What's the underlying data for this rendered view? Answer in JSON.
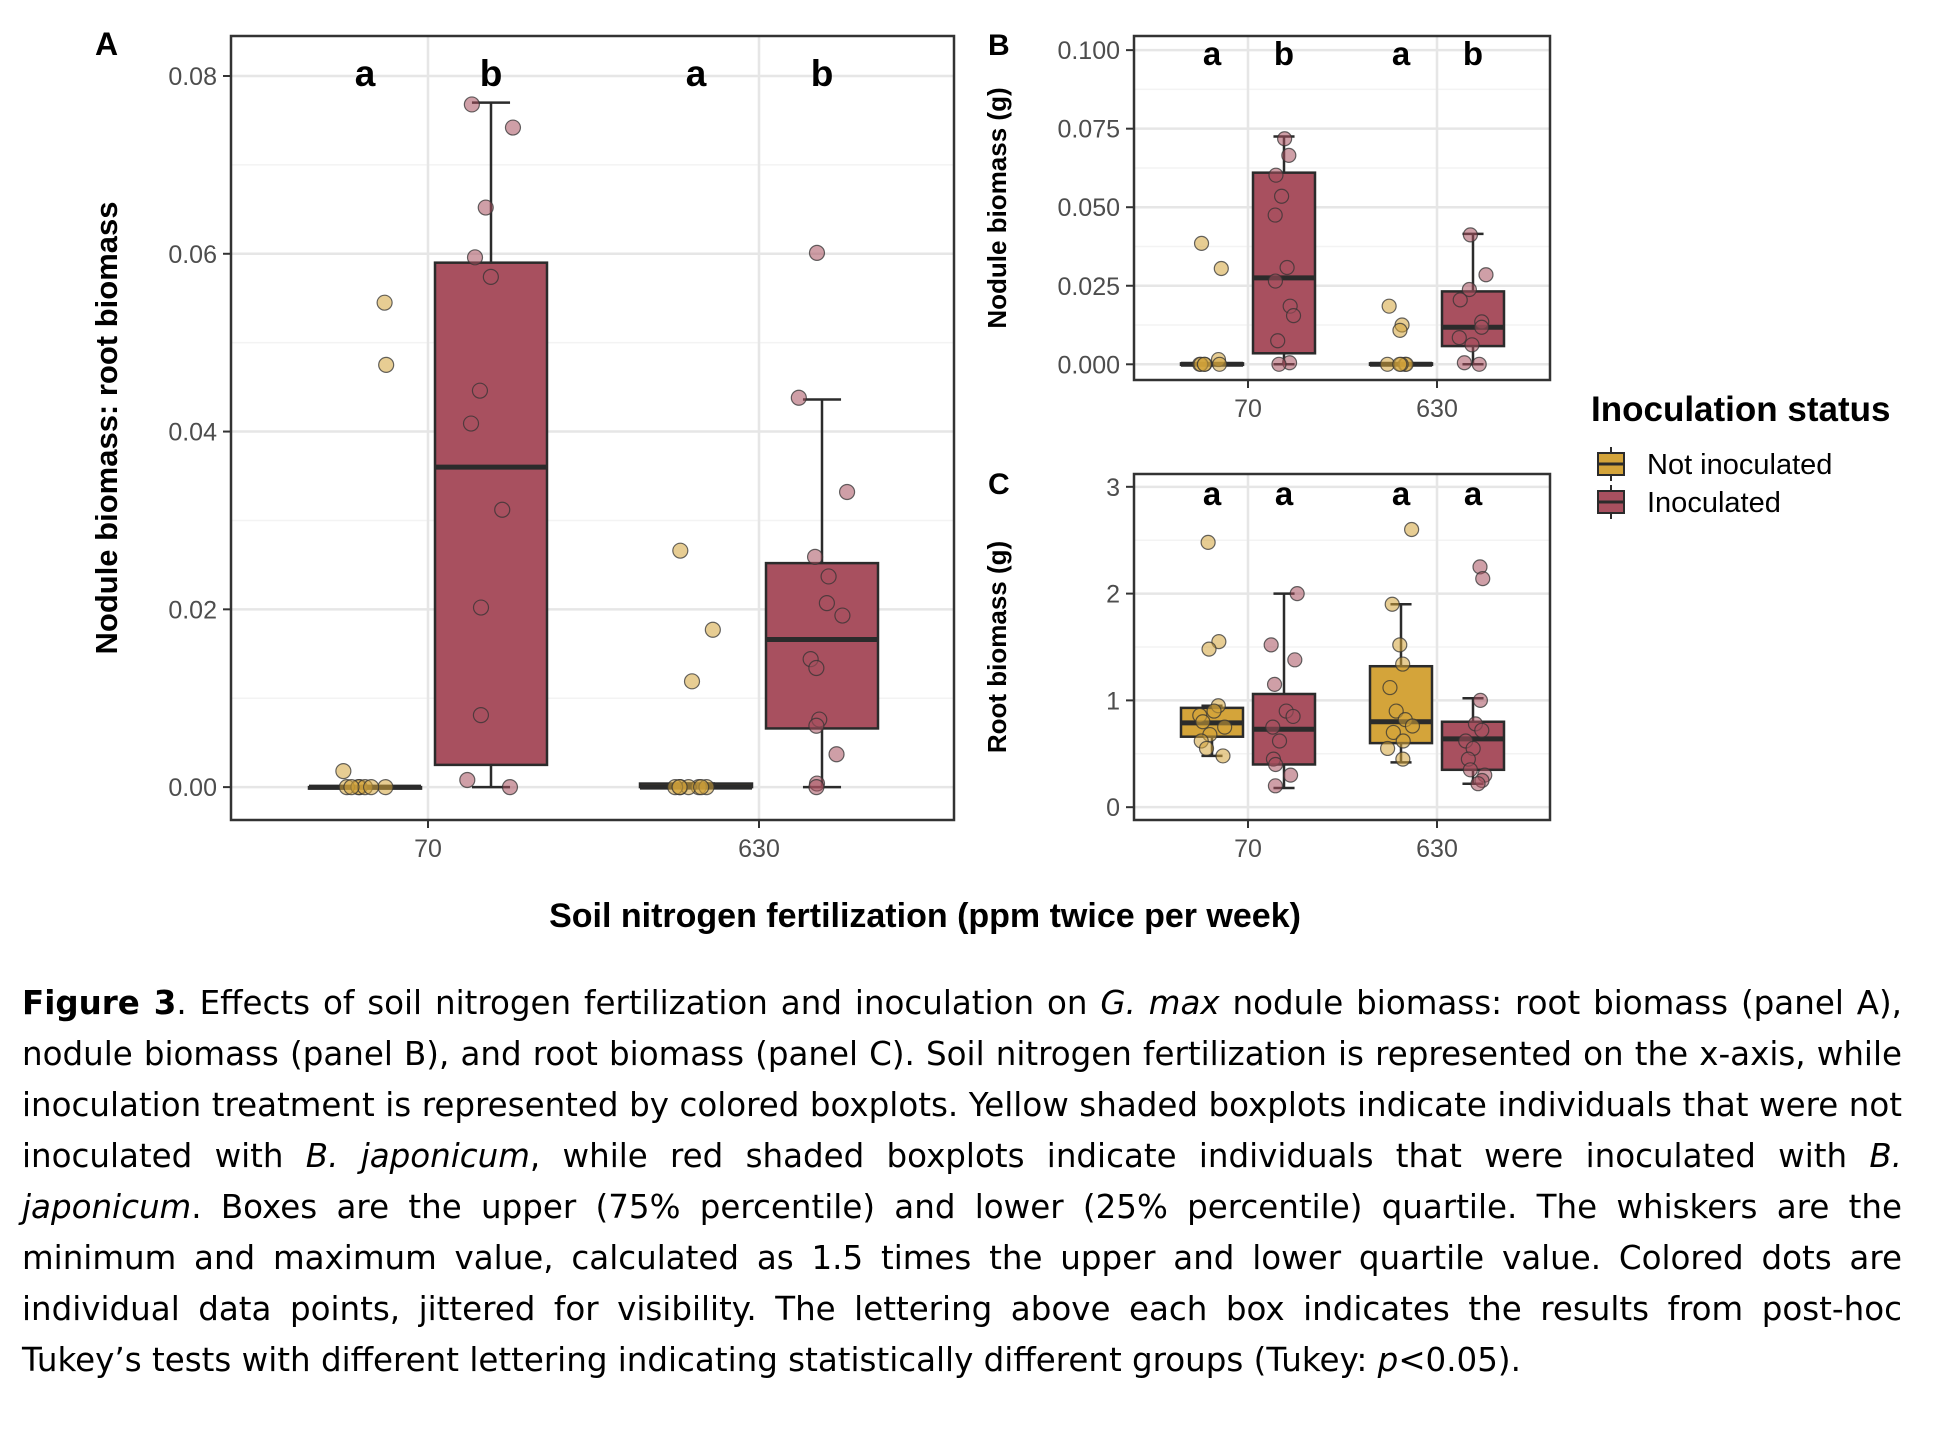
{
  "figure": {
    "shared_xlabel": "Soil nitrogen fertilization (ppm twice per week)",
    "legend": {
      "title": "Inoculation status",
      "entries": [
        {
          "label": "Not inoculated",
          "color": "#D4A43A"
        },
        {
          "label": "Inoculated",
          "color": "#A8505F"
        }
      ]
    }
  },
  "chart_data": [
    {
      "panel": "A",
      "type": "box",
      "categories": [
        "70",
        "630"
      ],
      "ylabel": "Nodule biomass: root biomass",
      "ylim": [
        -0.0037,
        0.0845
      ],
      "yticks": [
        "0.00",
        "0.02",
        "0.04",
        "0.06",
        "0.08"
      ],
      "yticks_values": [
        0,
        0.02,
        0.04,
        0.06,
        0.08
      ],
      "series": [
        {
          "name": "Not inoculated",
          "boxes": [
            {
              "category": "70",
              "min": 0,
              "q1": 0,
              "median": 0,
              "q3": 0,
              "max": 0,
              "points": [
                0.0545,
                0.0475,
                0.0018,
                0,
                0,
                0,
                0,
                0,
                0,
                0
              ]
            },
            {
              "category": "630",
              "min": 0,
              "q1": 0,
              "median": 0,
              "q3": 0.0004,
              "max": 0.0004,
              "points": [
                0.0266,
                0.0177,
                0.0119,
                0,
                0,
                0,
                0,
                0,
                0,
                0
              ]
            }
          ]
        },
        {
          "name": "Inoculated",
          "boxes": [
            {
              "category": "70",
              "min": 0,
              "q1": 0.0025,
              "median": 0.036,
              "q3": 0.059,
              "max": 0.077,
              "points": [
                0.0768,
                0.0742,
                0.0652,
                0.0596,
                0.0574,
                0.0446,
                0.0409,
                0.0312,
                0.0202,
                0.0081,
                0.0008,
                0
              ]
            },
            {
              "category": "630",
              "min": 0,
              "q1": 0.0066,
              "median": 0.0166,
              "q3": 0.0252,
              "max": 0.0436,
              "points": [
                0.0601,
                0.0438,
                0.0332,
                0.0259,
                0.0237,
                0.0207,
                0.0193,
                0.0144,
                0.0134,
                0.0076,
                0.0069,
                0.0037,
                0.0004,
                0
              ]
            }
          ]
        }
      ],
      "letters": [
        "a",
        "b",
        "a",
        "b"
      ]
    },
    {
      "panel": "B",
      "type": "box",
      "categories": [
        "70",
        "630"
      ],
      "ylabel": "Nodule biomass (g)",
      "ylim": [
        -0.005,
        0.1045
      ],
      "yticks": [
        "0.000",
        "0.025",
        "0.050",
        "0.075",
        "0.100"
      ],
      "yticks_values": [
        0,
        0.025,
        0.05,
        0.075,
        0.1
      ],
      "series": [
        {
          "name": "Not inoculated",
          "boxes": [
            {
              "category": "70",
              "min": 0,
              "q1": 0,
              "median": 0,
              "q3": 0.0003,
              "max": 0.0003,
              "points": [
                0.0385,
                0.0305,
                0.0015,
                0,
                0,
                0,
                0,
                0
              ]
            },
            {
              "category": "630",
              "min": 0,
              "q1": 0,
              "median": 0,
              "q3": 0.0003,
              "max": 0.0003,
              "points": [
                0.0185,
                0.0125,
                0.0108,
                0,
                0,
                0,
                0,
                0
              ]
            }
          ]
        },
        {
          "name": "Inoculated",
          "boxes": [
            {
              "category": "70",
              "min": 0,
              "q1": 0.0035,
              "median": 0.0275,
              "q3": 0.061,
              "max": 0.0725,
              "points": [
                0.0718,
                0.0665,
                0.0602,
                0.0535,
                0.0475,
                0.0308,
                0.0265,
                0.0185,
                0.0155,
                0.0075,
                0.0005,
                0
              ]
            },
            {
              "category": "630",
              "min": 0,
              "q1": 0.0058,
              "median": 0.0118,
              "q3": 0.0232,
              "max": 0.0415,
              "points": [
                0.0412,
                0.0285,
                0.0238,
                0.0205,
                0.0135,
                0.0118,
                0.0085,
                0.0062,
                0.0005,
                0
              ]
            }
          ]
        }
      ],
      "letters": [
        "a",
        "b",
        "a",
        "b"
      ]
    },
    {
      "panel": "C",
      "type": "box",
      "categories": [
        "70",
        "630"
      ],
      "ylabel": "Root biomass (g)",
      "ylim": [
        -0.12,
        3.12
      ],
      "yticks": [
        "0",
        "1",
        "2",
        "3"
      ],
      "yticks_values": [
        0,
        1,
        2,
        3
      ],
      "series": [
        {
          "name": "Not inoculated",
          "boxes": [
            {
              "category": "70",
              "min": 0.48,
              "q1": 0.66,
              "median": 0.79,
              "q3": 0.93,
              "max": 0.95,
              "points": [
                2.48,
                1.55,
                1.48,
                0.95,
                0.9,
                0.86,
                0.8,
                0.75,
                0.68,
                0.62,
                0.55,
                0.48
              ]
            },
            {
              "category": "630",
              "min": 0.42,
              "q1": 0.6,
              "median": 0.8,
              "q3": 1.32,
              "max": 1.9,
              "points": [
                2.6,
                1.9,
                1.52,
                1.34,
                1.12,
                0.9,
                0.82,
                0.76,
                0.7,
                0.62,
                0.55,
                0.45
              ]
            }
          ]
        },
        {
          "name": "Inoculated",
          "boxes": [
            {
              "category": "70",
              "min": 0.18,
              "q1": 0.4,
              "median": 0.73,
              "q3": 1.06,
              "max": 2.0,
              "points": [
                2.0,
                1.52,
                1.38,
                1.15,
                0.9,
                0.85,
                0.75,
                0.62,
                0.45,
                0.4,
                0.3,
                0.2
              ]
            },
            {
              "category": "630",
              "min": 0.22,
              "q1": 0.35,
              "median": 0.64,
              "q3": 0.8,
              "max": 1.02,
              "points": [
                2.25,
                2.14,
                1.0,
                0.78,
                0.72,
                0.62,
                0.55,
                0.45,
                0.35,
                0.3,
                0.25,
                0.22
              ]
            }
          ]
        }
      ],
      "letters": [
        "a",
        "a",
        "a",
        "a"
      ]
    }
  ],
  "caption": {
    "label": "Figure 3",
    "parts": [
      {
        "t": ". Effects of soil nitrogen fertilization and inoculation on "
      },
      {
        "t": "G. max",
        "i": true
      },
      {
        "t": " nodule biomass: root biomass (panel A), nodule biomass (panel B), and root biomass (panel C). Soil nitrogen fertilization is represented on the x-axis, while inoculation treatment is represented by colored boxplots. Yellow shaded boxplots indicate individuals that were not inoculated with "
      },
      {
        "t": "B. japonicum",
        "i": true
      },
      {
        "t": ", while red shaded boxplots indicate individuals that were inoculated with "
      },
      {
        "t": "B. japonicum",
        "i": true
      },
      {
        "t": ". Boxes are the upper (75% percentile) and lower (25% percentile) quartile. The whiskers are the minimum and maximum value, calculated as 1.5 times the upper and lower quartile value. Colored dots are individual data points, jittered for visibility. The lettering above each box indicates the results from post-hoc Tukey’s tests with different lettering indicating statistically different groups (Tukey: "
      },
      {
        "t": "p",
        "i": true
      },
      {
        "t": "<0.05)."
      }
    ]
  }
}
